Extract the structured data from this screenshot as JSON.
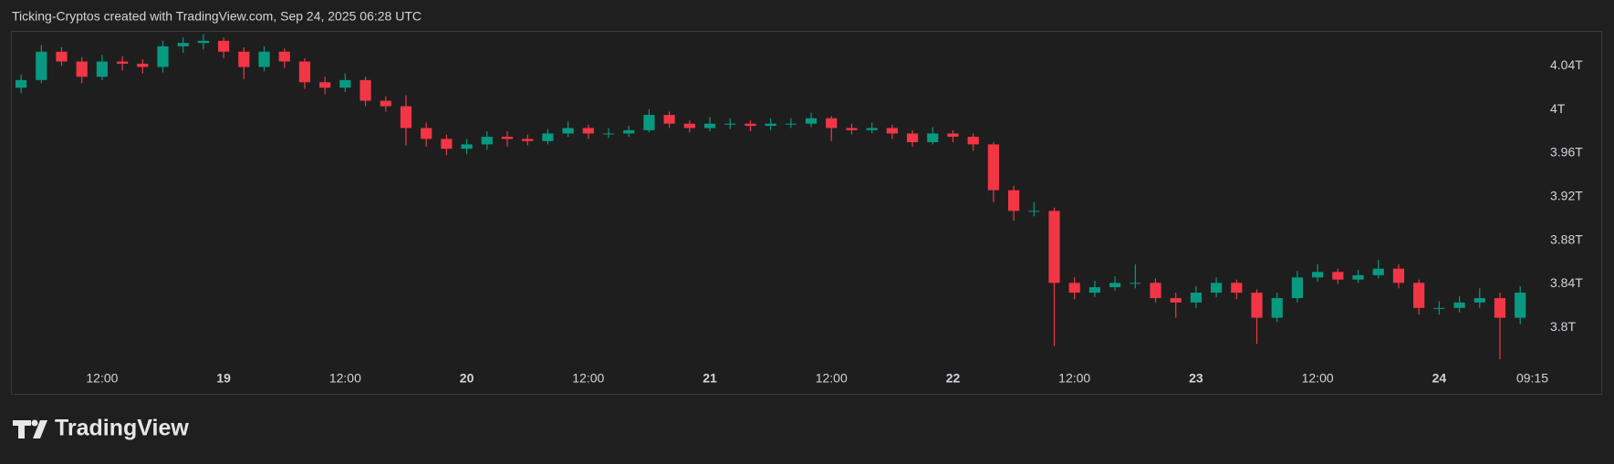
{
  "header": "Ticking-Cryptos created with TradingView.com, Sep 24, 2025 06:28 UTC",
  "logo": "TradingView",
  "chart_data": {
    "type": "candlestick",
    "up_color": "#089981",
    "down_color": "#f23645",
    "open": [
      4.02,
      4.027,
      4.053,
      4.044,
      4.03,
      4.044,
      4.042,
      4.039,
      4.058,
      4.061,
      4.063,
      4.053,
      4.039,
      4.053,
      4.044,
      4.025,
      4.02,
      4.027,
      4.008,
      4.003,
      3.983,
      3.973,
      3.964,
      3.968,
      3.975,
      3.973,
      3.971,
      3.978,
      3.983,
      3.978,
      3.978,
      3.981,
      3.995,
      3.987,
      3.983,
      3.987,
      3.987,
      3.985,
      3.987,
      3.987,
      3.992,
      3.983,
      3.981,
      3.983,
      3.978,
      3.97,
      3.978,
      3.975,
      3.968,
      3.926,
      3.907,
      3.907,
      3.841,
      3.832,
      3.837,
      3.841,
      3.841,
      3.827,
      3.823,
      3.832,
      3.841,
      3.832,
      3.809,
      3.827,
      3.846,
      3.851,
      3.844,
      3.848,
      3.854,
      3.841,
      3.818,
      3.818,
      3.823,
      3.827,
      3.809
    ],
    "high": [
      4.032,
      4.059,
      4.057,
      4.048,
      4.05,
      4.049,
      4.046,
      4.063,
      4.066,
      4.069,
      4.066,
      4.057,
      4.058,
      4.056,
      4.047,
      4.03,
      4.033,
      4.03,
      4.012,
      4.013,
      3.988,
      3.977,
      3.973,
      3.98,
      3.98,
      3.977,
      3.982,
      3.989,
      3.986,
      3.983,
      3.985,
      4.0,
      3.998,
      3.99,
      3.993,
      3.992,
      3.99,
      3.992,
      3.992,
      3.997,
      3.994,
      3.987,
      3.988,
      3.986,
      3.981,
      3.984,
      3.981,
      3.978,
      3.97,
      3.93,
      3.915,
      3.91,
      3.846,
      3.843,
      3.847,
      3.858,
      3.845,
      3.832,
      3.838,
      3.846,
      3.844,
      3.835,
      3.832,
      3.852,
      3.858,
      3.854,
      3.853,
      3.862,
      3.858,
      3.844,
      3.824,
      3.829,
      3.836,
      3.832,
      3.838
    ],
    "low": [
      4.015,
      4.024,
      4.04,
      4.024,
      4.027,
      4.036,
      4.033,
      4.034,
      4.052,
      4.055,
      4.047,
      4.028,
      4.035,
      4.038,
      4.019,
      4.014,
      4.016,
      4.003,
      3.998,
      3.967,
      3.966,
      3.958,
      3.959,
      3.963,
      3.966,
      3.967,
      3.968,
      3.975,
      3.973,
      3.974,
      3.975,
      3.979,
      3.983,
      3.979,
      3.98,
      3.982,
      3.98,
      3.981,
      3.983,
      3.984,
      3.971,
      3.977,
      3.978,
      3.973,
      3.966,
      3.968,
      3.97,
      3.962,
      3.915,
      3.898,
      3.902,
      3.783,
      3.826,
      3.828,
      3.834,
      3.836,
      3.823,
      3.809,
      3.818,
      3.828,
      3.826,
      3.785,
      3.805,
      3.823,
      3.842,
      3.84,
      3.841,
      3.845,
      3.836,
      3.812,
      3.812,
      3.814,
      3.818,
      3.771,
      3.803
    ],
    "close": [
      4.027,
      4.053,
      4.044,
      4.03,
      4.044,
      4.042,
      4.039,
      4.058,
      4.061,
      4.063,
      4.053,
      4.039,
      4.053,
      4.044,
      4.025,
      4.02,
      4.027,
      4.008,
      4.003,
      3.983,
      3.973,
      3.964,
      3.968,
      3.975,
      3.973,
      3.971,
      3.978,
      3.983,
      3.978,
      3.978,
      3.981,
      3.995,
      3.987,
      3.983,
      3.987,
      3.987,
      3.985,
      3.987,
      3.987,
      3.992,
      3.983,
      3.981,
      3.983,
      3.978,
      3.97,
      3.978,
      3.975,
      3.968,
      3.926,
      3.907,
      3.907,
      3.841,
      3.832,
      3.837,
      3.841,
      3.841,
      3.827,
      3.823,
      3.832,
      3.841,
      3.832,
      3.809,
      3.827,
      3.846,
      3.851,
      3.844,
      3.848,
      3.854,
      3.841,
      3.818,
      3.818,
      3.823,
      3.827,
      3.809,
      3.832
    ],
    "xlim": [
      -0.5,
      78
    ],
    "xticks": [
      {
        "value": 4,
        "label": "12:00"
      },
      {
        "value": 10,
        "label": "19"
      },
      {
        "value": 16,
        "label": "12:00"
      },
      {
        "value": 22,
        "label": "20"
      },
      {
        "value": 28,
        "label": "12:00"
      },
      {
        "value": 34,
        "label": "21"
      },
      {
        "value": 40,
        "label": "12:00"
      },
      {
        "value": 46,
        "label": "22"
      },
      {
        "value": 52,
        "label": "12:00"
      },
      {
        "value": 58,
        "label": "23"
      },
      {
        "value": 64,
        "label": "12:00"
      },
      {
        "value": 70,
        "label": "24"
      },
      {
        "value": 74.6,
        "label": "09:15"
      }
    ],
    "ylim": [
      3.766,
      4.072
    ],
    "yticks": [
      {
        "value": 4.04,
        "label": "4.04T"
      },
      {
        "value": 4,
        "label": "4T"
      },
      {
        "value": 3.96,
        "label": "3.96T"
      },
      {
        "value": 3.92,
        "label": "3.92T"
      },
      {
        "value": 3.88,
        "label": "3.88T"
      },
      {
        "value": 3.84,
        "label": "3.84T"
      },
      {
        "value": 3.8,
        "label": "3.8T"
      }
    ]
  }
}
